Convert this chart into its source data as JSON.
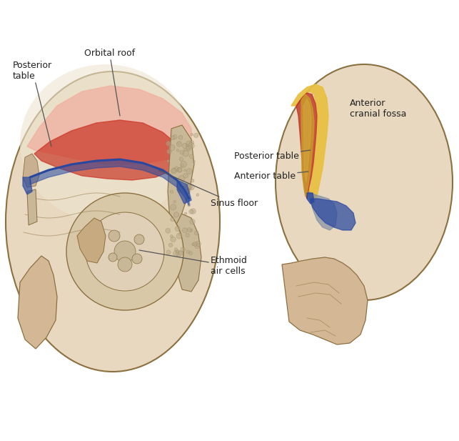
{
  "figure_bg": "#ffffff",
  "colors": {
    "skull_fill": "#d4b896",
    "skull_light": "#e8d8c0",
    "skull_lighter": "#ede5d0",
    "skull_outline": "#8b7040",
    "pink_region": "#f0b0a0",
    "red_region": "#c83020",
    "sinus_blue": "#2848a0",
    "blue_light": "#4060b0",
    "yellow_table": "#e8c040",
    "gold_inner": "#c89828",
    "red_lateral": "#c03020",
    "gray_sinus": "#7888a0",
    "label_color": "#222222",
    "line_color": "#555555"
  },
  "labels": {
    "posterior_table_L": "Posterior\ntable",
    "orbital_roof": "Orbital roof",
    "sinus_floor": "Sinus floor",
    "ethmoid": "Ethmoid\nair cells",
    "posterior_table_R": "Posterior table",
    "anterior_table_R": "Anterior table",
    "anterior_cranial_fossa": "Anterior\ncranial fossa"
  }
}
